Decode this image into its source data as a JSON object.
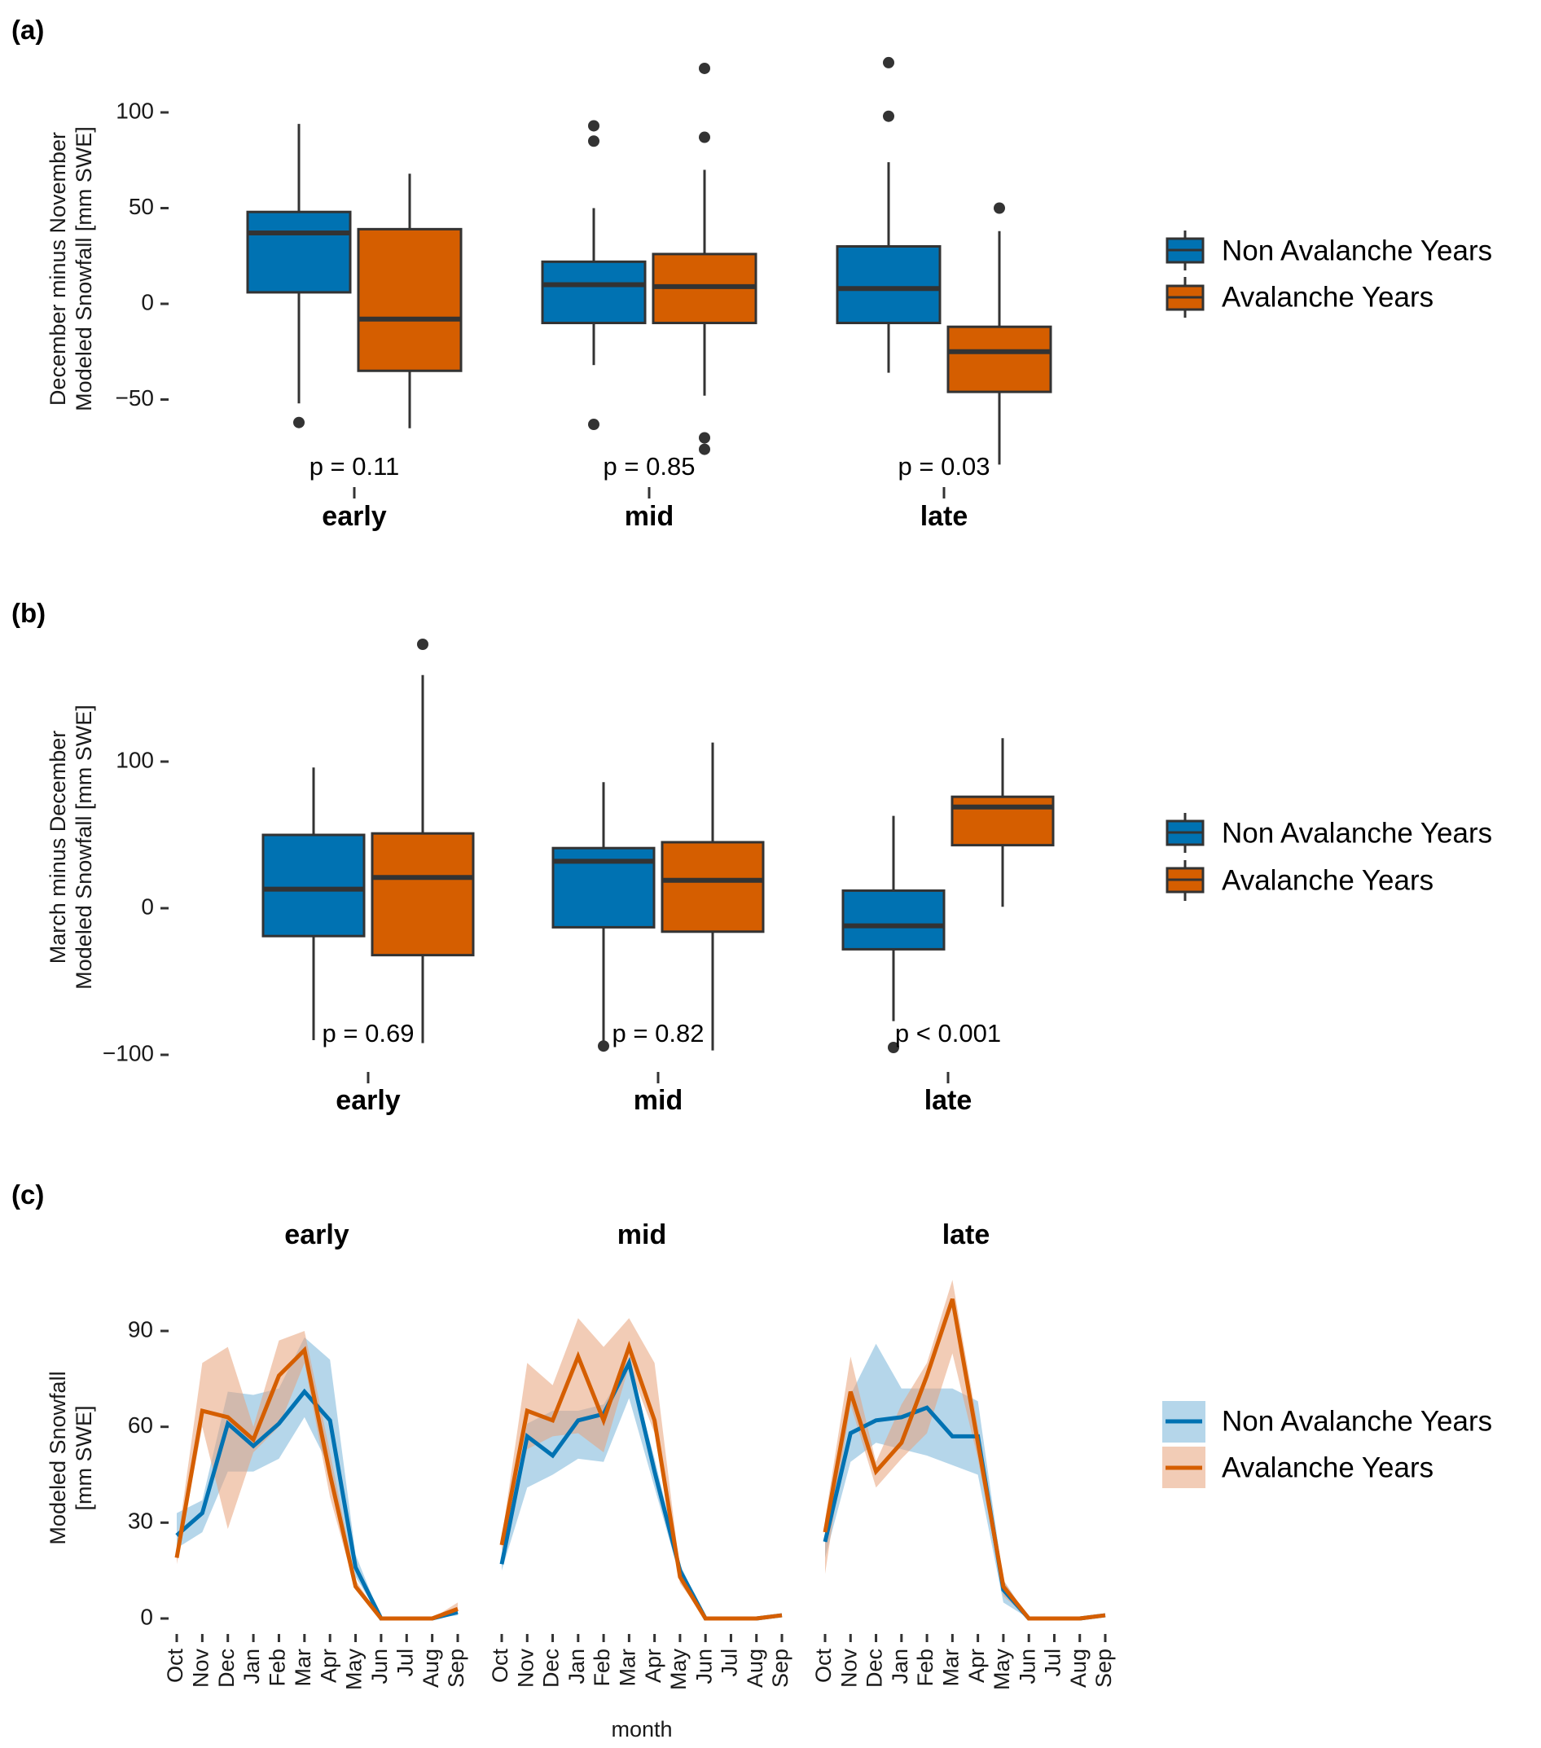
{
  "colors": {
    "non_avalanche": "#0072B2",
    "avalanche": "#D55E00",
    "non_avalanche_ribbon": "#6BAED6",
    "avalanche_ribbon": "#E8A27A",
    "outline": "#333333"
  },
  "legend": {
    "items": [
      {
        "label": "Non Avalanche Years",
        "key": "non_avalanche"
      },
      {
        "label": "Avalanche Years",
        "key": "avalanche"
      }
    ]
  },
  "chart_data": [
    {
      "panel_label": "(a)",
      "type": "box",
      "ylabel_lines": [
        "December minus November",
        "Modeled Snowfall [mm SWE]"
      ],
      "xlabel": "",
      "yticks": [
        -50,
        0,
        50,
        100
      ],
      "ylim": [
        -85,
        130
      ],
      "categories": [
        "early",
        "mid",
        "late"
      ],
      "p_values": [
        "p = 0.11",
        "p = 0.85",
        "p = 0.03"
      ],
      "series": [
        {
          "name": "Non Avalanche Years",
          "boxes": [
            {
              "whisker_low": -52,
              "q1": 6,
              "median": 37,
              "q3": 48,
              "whisker_high": 94,
              "outliers": [
                -62
              ]
            },
            {
              "whisker_low": -32,
              "q1": -10,
              "median": 10,
              "q3": 22,
              "whisker_high": 50,
              "outliers": [
                93,
                85,
                -63
              ]
            },
            {
              "whisker_low": -36,
              "q1": -10,
              "median": 8,
              "q3": 30,
              "whisker_high": 74,
              "outliers": [
                126,
                98
              ]
            }
          ]
        },
        {
          "name": "Avalanche Years",
          "boxes": [
            {
              "whisker_low": -65,
              "q1": -35,
              "median": -8,
              "q3": 39,
              "whisker_high": 68,
              "outliers": []
            },
            {
              "whisker_low": -48,
              "q1": -10,
              "median": 9,
              "q3": 26,
              "whisker_high": 70,
              "outliers": [
                123,
                87,
                -70,
                -76
              ]
            },
            {
              "whisker_low": -84,
              "q1": -46,
              "median": -25,
              "q3": -12,
              "whisker_high": 38,
              "outliers": [
                50
              ]
            }
          ]
        }
      ]
    },
    {
      "panel_label": "(b)",
      "type": "box",
      "ylabel_lines": [
        "March minus December",
        "Modeled Snowfall [mm SWE]"
      ],
      "xlabel": "",
      "yticks": [
        -100,
        0,
        100
      ],
      "ylim": [
        -115,
        195
      ],
      "categories": [
        "early",
        "mid",
        "late"
      ],
      "p_values": [
        "p = 0.69",
        "p = 0.82",
        "p < 0.001"
      ],
      "series": [
        {
          "name": "Non Avalanche Years",
          "boxes": [
            {
              "whisker_low": -90,
              "q1": -19,
              "median": 13,
              "q3": 50,
              "whisker_high": 96,
              "outliers": []
            },
            {
              "whisker_low": -92,
              "q1": -13,
              "median": 32,
              "q3": 41,
              "whisker_high": 86,
              "outliers": [
                -94
              ]
            },
            {
              "whisker_low": -77,
              "q1": -28,
              "median": -12,
              "q3": 12,
              "whisker_high": 63,
              "outliers": [
                -95
              ]
            }
          ]
        },
        {
          "name": "Avalanche Years",
          "boxes": [
            {
              "whisker_low": -92,
              "q1": -32,
              "median": 21,
              "q3": 51,
              "whisker_high": 159,
              "outliers": [
                180
              ]
            },
            {
              "whisker_low": -97,
              "q1": -16,
              "median": 19,
              "q3": 45,
              "whisker_high": 113,
              "outliers": []
            },
            {
              "whisker_low": 1,
              "q1": 43,
              "median": 69,
              "q3": 76,
              "whisker_high": 116,
              "outliers": []
            }
          ]
        }
      ]
    },
    {
      "panel_label": "(c)",
      "type": "line",
      "ylabel_lines": [
        "Modeled Snowfall",
        "[mm SWE]"
      ],
      "xlabel": "month",
      "yticks": [
        0,
        30,
        60,
        90
      ],
      "ylim": [
        -2,
        105
      ],
      "x": [
        "Oct",
        "Nov",
        "Dec",
        "Jan",
        "Feb",
        "Mar",
        "Apr",
        "May",
        "Jun",
        "Jul",
        "Aug",
        "Sep"
      ],
      "facets": [
        {
          "title": "early",
          "series": [
            {
              "name": "Non Avalanche Years",
              "values": [
                26,
                33,
                61,
                54,
                61,
                71,
                62,
                16,
                0,
                0,
                0,
                2
              ],
              "lower": [
                22,
                27,
                46,
                46,
                50,
                63,
                47,
                13,
                0,
                0,
                0,
                1
              ],
              "upper": [
                33,
                37,
                71,
                70,
                72,
                88,
                81,
                20,
                0,
                0,
                0,
                3
              ]
            },
            {
              "name": "Avalanche Years",
              "values": [
                19,
                65,
                63,
                56,
                76,
                84,
                45,
                10,
                0,
                0,
                0,
                3
              ],
              "lower": [
                17,
                60,
                28,
                52,
                60,
                80,
                38,
                9,
                0,
                0,
                0,
                2
              ],
              "upper": [
                22,
                80,
                85,
                60,
                87,
                90,
                52,
                12,
                0,
                0,
                0,
                5
              ]
            }
          ]
        },
        {
          "title": "mid",
          "series": [
            {
              "name": "Non Avalanche Years",
              "values": [
                17,
                57,
                51,
                62,
                64,
                80,
                46,
                15,
                0,
                0,
                0,
                1
              ],
              "lower": [
                15,
                41,
                45,
                50,
                49,
                69,
                41,
                13,
                0,
                0,
                0,
                1
              ],
              "upper": [
                19,
                61,
                65,
                65,
                67,
                80,
                50,
                17,
                0,
                0,
                0,
                1
              ]
            },
            {
              "name": "Avalanche Years",
              "values": [
                23,
                65,
                62,
                82,
                62,
                85,
                62,
                13,
                0,
                0,
                0,
                1
              ],
              "lower": [
                21,
                53,
                57,
                58,
                52,
                79,
                58,
                11,
                0,
                0,
                0,
                1
              ],
              "upper": [
                25,
                80,
                73,
                94,
                85,
                94,
                80,
                15,
                0,
                0,
                0,
                1
              ]
            }
          ]
        },
        {
          "title": "late",
          "series": [
            {
              "name": "Non Avalanche Years",
              "values": [
                24,
                58,
                62,
                63,
                66,
                57,
                57,
                9,
                0,
                0,
                0,
                1
              ],
              "lower": [
                19,
                49,
                55,
                53,
                51,
                48,
                45,
                5,
                0,
                0,
                0,
                1
              ],
              "upper": [
                30,
                70,
                86,
                72,
                72,
                72,
                68,
                12,
                0,
                0,
                0,
                1
              ]
            },
            {
              "name": "Avalanche Years",
              "values": [
                27,
                71,
                46,
                55,
                76,
                100,
                55,
                10,
                0,
                0,
                0,
                1
              ],
              "lower": [
                14,
                67,
                41,
                50,
                58,
                83,
                50,
                7,
                0,
                0,
                0,
                1
              ],
              "upper": [
                31,
                82,
                49,
                67,
                80,
                106,
                60,
                12,
                0,
                0,
                0,
                1
              ]
            }
          ]
        }
      ]
    }
  ]
}
